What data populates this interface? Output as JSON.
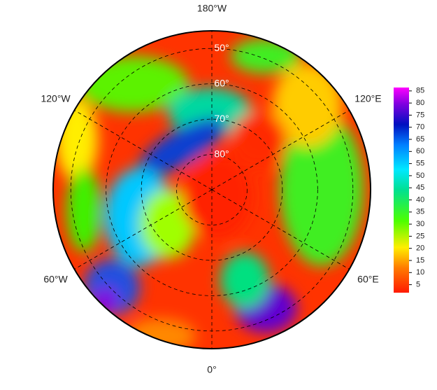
{
  "map": {
    "longitude_labels": [
      {
        "value": 180,
        "label": "180°W"
      },
      {
        "value": 0,
        "label": "0°"
      },
      {
        "value": -120,
        "label": "120°W"
      },
      {
        "value": 120,
        "label": "120°E"
      },
      {
        "value": -60,
        "label": "60°W"
      },
      {
        "value": 60,
        "label": "60°E"
      }
    ],
    "latitude_labels": [
      {
        "value": 50,
        "label": "50°"
      },
      {
        "value": 60,
        "label": "60°"
      },
      {
        "value": 70,
        "label": "70°"
      },
      {
        "value": 80,
        "label": "80°"
      }
    ],
    "latitude_limit": 45,
    "colorbar": {
      "range": [
        1.7,
        86.4
      ],
      "ticks": [
        5,
        10,
        15,
        20,
        25,
        30,
        35,
        40,
        45,
        50,
        55,
        60,
        65,
        70,
        75,
        80,
        85
      ]
    }
  }
}
